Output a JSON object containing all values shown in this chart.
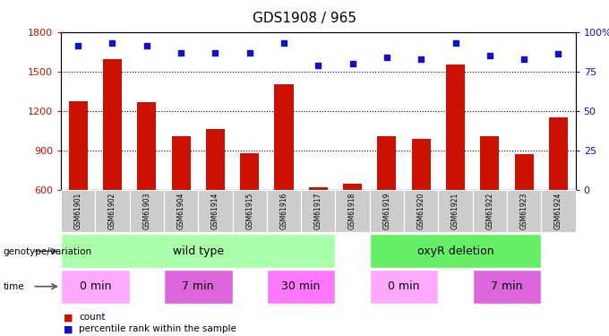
{
  "title": "GDS1908 / 965",
  "samples": [
    "GSM61901",
    "GSM61902",
    "GSM61903",
    "GSM61904",
    "GSM61914",
    "GSM61915",
    "GSM61916",
    "GSM61917",
    "GSM61918",
    "GSM61919",
    "GSM61920",
    "GSM61921",
    "GSM61922",
    "GSM61923",
    "GSM61924"
  ],
  "counts": [
    1270,
    1590,
    1265,
    1010,
    1060,
    880,
    1400,
    620,
    645,
    1010,
    985,
    1555,
    1010,
    870,
    1150
  ],
  "percentiles": [
    91,
    93,
    91,
    87,
    87,
    87,
    93,
    79,
    80,
    84,
    83,
    93,
    85,
    83,
    86
  ],
  "ylim_left": [
    600,
    1800
  ],
  "ylim_right": [
    0,
    100
  ],
  "yticks_left": [
    600,
    900,
    1200,
    1500,
    1800
  ],
  "yticks_right": [
    0,
    25,
    50,
    75,
    100
  ],
  "bar_color": "#cc1100",
  "square_color": "#1111cc",
  "genotype_groups": [
    {
      "label": "wild type",
      "start": 0,
      "end": 8,
      "color": "#aaffaa"
    },
    {
      "label": "oxyR deletion",
      "start": 9,
      "end": 14,
      "color": "#66ee66"
    }
  ],
  "time_groups": [
    {
      "label": "0 min",
      "start": 0,
      "end": 2,
      "color": "#ffaaff"
    },
    {
      "label": "7 min",
      "start": 3,
      "end": 5,
      "color": "#dd66dd"
    },
    {
      "label": "30 min",
      "start": 6,
      "end": 8,
      "color": "#ff77ff"
    },
    {
      "label": "0 min",
      "start": 9,
      "end": 11,
      "color": "#ffaaff"
    },
    {
      "label": "7 min",
      "start": 12,
      "end": 14,
      "color": "#dd66dd"
    }
  ],
  "legend_count_label": "count",
  "legend_pct_label": "percentile rank within the sample",
  "geno_label": "genotype/variation",
  "time_label": "time",
  "bar_color_legend": "#cc1100",
  "square_color_legend": "#1111cc"
}
